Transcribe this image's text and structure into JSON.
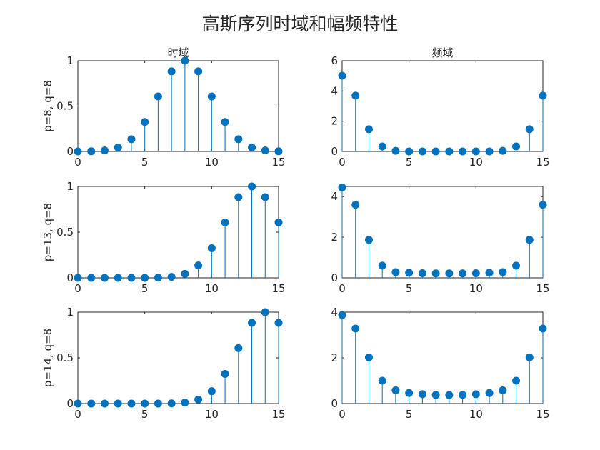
{
  "figure": {
    "title": "高斯序列时域和幅频特性",
    "colors": {
      "series": "#0072BD",
      "axes": "#262626"
    }
  },
  "chart_data": [
    {
      "type": "stem",
      "title": "时域",
      "ylabel": "p=8, q=8",
      "xlim": [
        0,
        15
      ],
      "ylim": [
        0,
        1
      ],
      "xticks": [
        0,
        5,
        10,
        15
      ],
      "yticks": [
        0,
        0.5,
        1
      ],
      "xtick_labels": [
        "0",
        "5",
        "10",
        "15"
      ],
      "ytick_labels": [
        "0",
        "0.5",
        "1"
      ],
      "x": [
        0,
        1,
        2,
        3,
        4,
        5,
        6,
        7,
        8,
        9,
        10,
        11,
        12,
        13,
        14,
        15
      ],
      "values": [
        0.0003,
        0.0022,
        0.0111,
        0.0439,
        0.1353,
        0.3247,
        0.6065,
        0.8825,
        1.0,
        0.8825,
        0.6065,
        0.3247,
        0.1353,
        0.0439,
        0.0111,
        0.0022
      ]
    },
    {
      "type": "stem",
      "title": "频域",
      "ylabel": "",
      "xlim": [
        0,
        15
      ],
      "ylim": [
        0,
        6
      ],
      "xticks": [
        0,
        5,
        10,
        15
      ],
      "yticks": [
        0,
        2,
        4,
        6
      ],
      "xtick_labels": [
        "0",
        "5",
        "10",
        "15"
      ],
      "ytick_labels": [
        "0",
        "2",
        "4",
        "6"
      ],
      "x": [
        0,
        1,
        2,
        3,
        4,
        5,
        6,
        7,
        8,
        9,
        10,
        11,
        12,
        13,
        14,
        15
      ],
      "values": [
        5.01,
        3.69,
        1.47,
        0.33,
        0.04,
        0.0,
        0.0,
        0.0,
        0.0,
        0.0,
        0.0,
        0.0,
        0.04,
        0.33,
        1.47,
        3.69
      ]
    },
    {
      "type": "stem",
      "title": "",
      "ylabel": "p=13, q=8",
      "xlim": [
        0,
        15
      ],
      "ylim": [
        0,
        1
      ],
      "xticks": [
        0,
        5,
        10,
        15
      ],
      "yticks": [
        0,
        0.5,
        1
      ],
      "xtick_labels": [
        "0",
        "5",
        "10",
        "15"
      ],
      "ytick_labels": [
        "0",
        "0.5",
        "1"
      ],
      "x": [
        0,
        1,
        2,
        3,
        4,
        5,
        6,
        7,
        8,
        9,
        10,
        11,
        12,
        13,
        14,
        15
      ],
      "values": [
        0.0,
        0.0,
        0.0,
        0.0,
        0.0,
        0.0,
        0.0022,
        0.0111,
        0.0439,
        0.1353,
        0.3247,
        0.6065,
        0.8825,
        1.0,
        0.8825,
        0.6065
      ]
    },
    {
      "type": "stem",
      "title": "",
      "ylabel": "",
      "xlim": [
        0,
        15
      ],
      "ylim": [
        0,
        4.5
      ],
      "xticks": [
        0,
        5,
        10,
        15
      ],
      "yticks": [
        0,
        2,
        4
      ],
      "xtick_labels": [
        "0",
        "5",
        "10",
        "15"
      ],
      "ytick_labels": [
        "0",
        "2",
        "4"
      ],
      "x": [
        0,
        1,
        2,
        3,
        4,
        5,
        6,
        7,
        8,
        9,
        10,
        11,
        12,
        13,
        14,
        15
      ],
      "values": [
        4.45,
        3.6,
        1.87,
        0.6,
        0.28,
        0.25,
        0.23,
        0.22,
        0.22,
        0.22,
        0.23,
        0.25,
        0.28,
        0.6,
        1.87,
        3.6
      ]
    },
    {
      "type": "stem",
      "title": "",
      "ylabel": "p=14, q=8",
      "xlim": [
        0,
        15
      ],
      "ylim": [
        0,
        1
      ],
      "xticks": [
        0,
        5,
        10,
        15
      ],
      "yticks": [
        0,
        0.5,
        1
      ],
      "xtick_labels": [
        "0",
        "5",
        "10",
        "15"
      ],
      "ytick_labels": [
        "0",
        "0.5",
        "1"
      ],
      "x": [
        0,
        1,
        2,
        3,
        4,
        5,
        6,
        7,
        8,
        9,
        10,
        11,
        12,
        13,
        14,
        15
      ],
      "values": [
        0.0,
        0.0,
        0.0,
        0.0,
        0.0,
        0.0,
        0.0,
        0.0022,
        0.0111,
        0.0439,
        0.1353,
        0.3247,
        0.6065,
        0.8825,
        1.0,
        0.8825
      ]
    },
    {
      "type": "stem",
      "title": "",
      "ylabel": "",
      "xlim": [
        0,
        15
      ],
      "ylim": [
        0,
        4
      ],
      "xticks": [
        0,
        5,
        10,
        15
      ],
      "yticks": [
        0,
        2,
        4
      ],
      "xtick_labels": [
        "0",
        "5",
        "10",
        "15"
      ],
      "ytick_labels": [
        "0",
        "2",
        "4"
      ],
      "x": [
        0,
        1,
        2,
        3,
        4,
        5,
        6,
        7,
        8,
        9,
        10,
        11,
        12,
        13,
        14,
        15
      ],
      "values": [
        3.87,
        3.28,
        2.02,
        1.0,
        0.58,
        0.46,
        0.41,
        0.38,
        0.37,
        0.38,
        0.41,
        0.46,
        0.58,
        1.0,
        2.02,
        3.28
      ]
    }
  ]
}
